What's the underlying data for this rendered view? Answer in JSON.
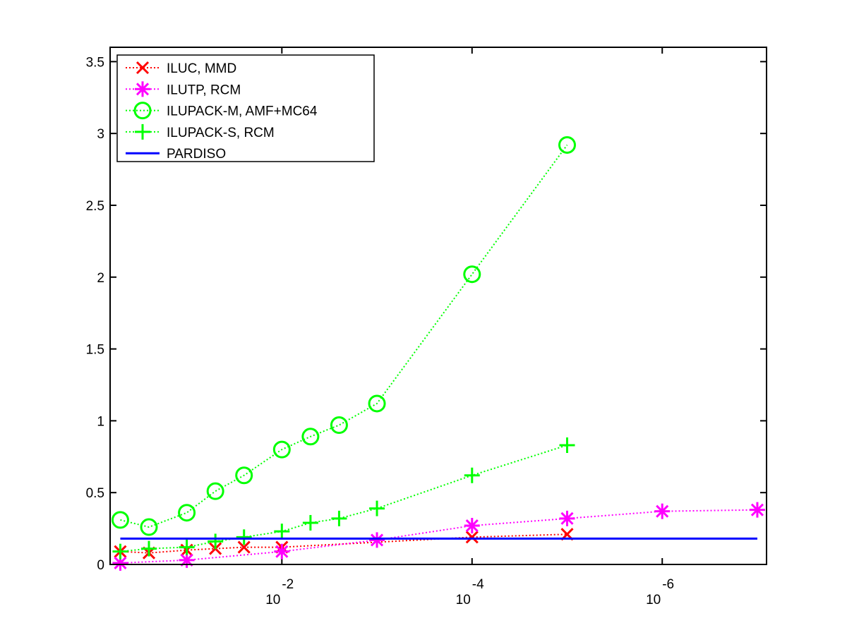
{
  "chart_data": {
    "type": "line",
    "xscale": "log",
    "xlim": [
      0.64,
      8e-08
    ],
    "xticks": [
      {
        "value": 0.01,
        "label": "10",
        "exponent": "-2"
      },
      {
        "value": 0.0001,
        "label": "10",
        "exponent": "-4"
      },
      {
        "value": 1e-06,
        "label": "10",
        "exponent": "-6"
      }
    ],
    "ylim": [
      0,
      3.6
    ],
    "yticks": [
      0,
      0.5,
      1,
      1.5,
      2,
      2.5,
      3,
      3.5
    ],
    "legend": "upper left",
    "series": [
      {
        "name": "ILUC, MMD",
        "color": "#ff0000",
        "marker": "x",
        "x": [
          0.5,
          0.25,
          0.1,
          0.05,
          0.025,
          0.01,
          0.0001,
          1e-05
        ],
        "values": [
          0.09,
          0.08,
          0.1,
          0.11,
          0.12,
          0.12,
          0.19,
          0.21
        ]
      },
      {
        "name": "ILUTP, RCM",
        "color": "#ff00ff",
        "marker": "asterisk",
        "x": [
          0.5,
          0.1,
          0.01,
          0.001,
          0.0001,
          1e-05,
          1e-06,
          1e-07
        ],
        "values": [
          0.01,
          0.03,
          0.09,
          0.17,
          0.27,
          0.32,
          0.37,
          0.38
        ]
      },
      {
        "name": "ILUPACK-M, AMF+MC64",
        "color": "#00ff00",
        "marker": "circle",
        "x": [
          0.5,
          0.25,
          0.1,
          0.05,
          0.025,
          0.01,
          0.005,
          0.0025,
          0.001,
          0.0001,
          1e-05
        ],
        "values": [
          0.31,
          0.26,
          0.36,
          0.51,
          0.62,
          0.8,
          0.89,
          0.97,
          1.12,
          2.02,
          2.92
        ]
      },
      {
        "name": "ILUPACK-S, RCM",
        "color": "#00ff00",
        "marker": "plus",
        "x": [
          0.5,
          0.25,
          0.1,
          0.05,
          0.025,
          0.01,
          0.005,
          0.0025,
          0.001,
          0.0001,
          1e-05
        ],
        "values": [
          0.09,
          0.11,
          0.12,
          0.16,
          0.19,
          0.23,
          0.29,
          0.32,
          0.39,
          0.62,
          0.83
        ]
      },
      {
        "name": "PARDISO",
        "color": "#0000ff",
        "marker": "none",
        "x": [
          0.5,
          1e-07
        ],
        "values": [
          0.18,
          0.18
        ]
      }
    ]
  }
}
